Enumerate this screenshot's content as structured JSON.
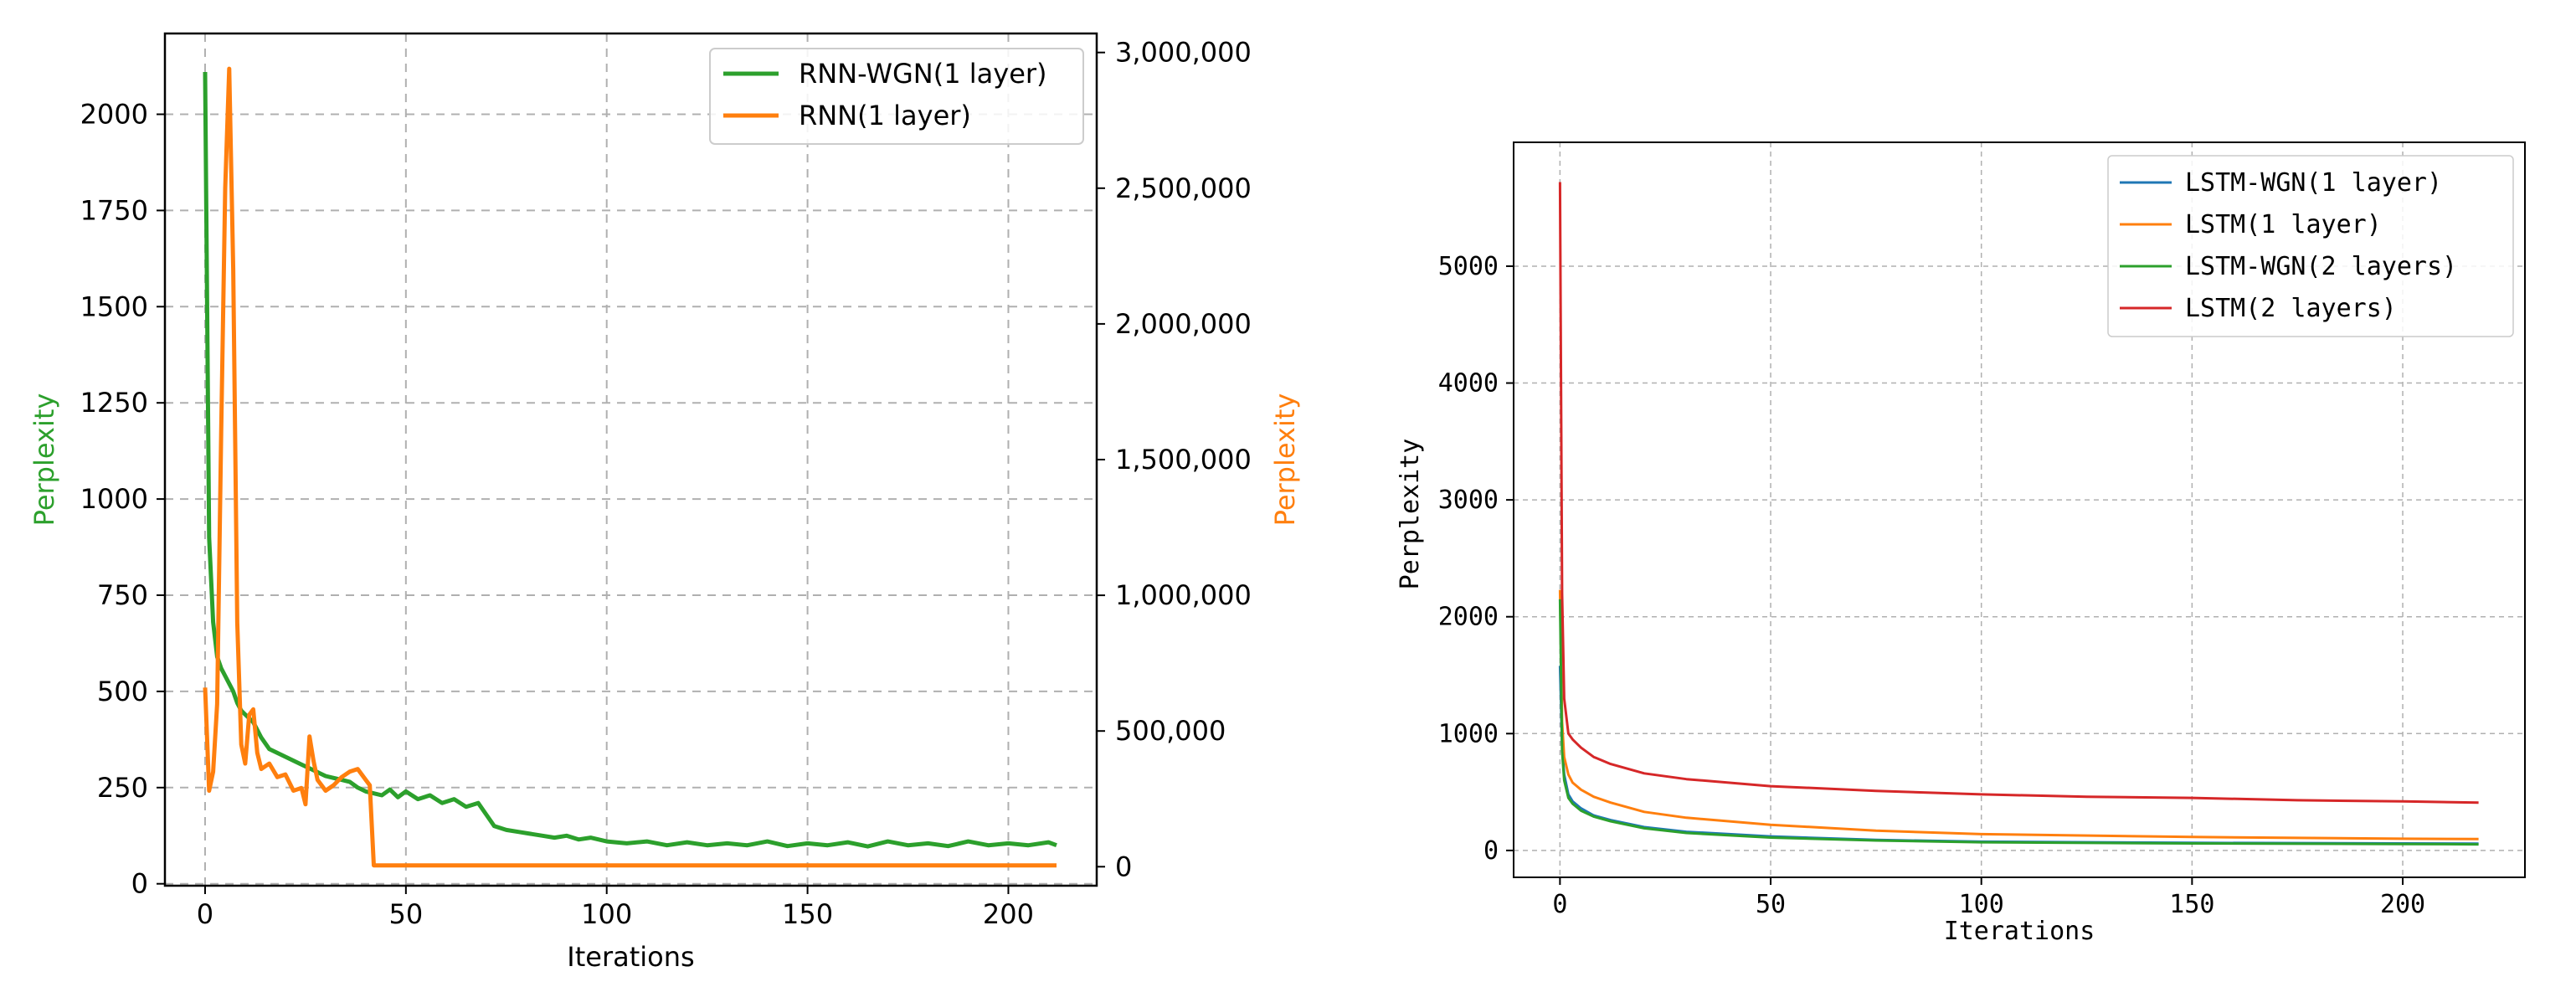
{
  "chart_data": [
    {
      "type": "line",
      "title": "",
      "xlabel": "Iterations",
      "ylabel": "Perplexity",
      "y2label": "Perplexity",
      "xlim": [
        -10,
        222
      ],
      "ylim": [
        -5,
        2210
      ],
      "y2lim": [
        -70000,
        3070000
      ],
      "x_ticks": [
        0,
        50,
        100,
        150,
        200
      ],
      "y_ticks": [
        0,
        250,
        500,
        750,
        1000,
        1250,
        1500,
        1750,
        2000
      ],
      "y2_ticks": [
        0,
        500000,
        1000000,
        1500000,
        2000000,
        2500000,
        3000000
      ],
      "x_tick_labels": [
        "0",
        "50",
        "100",
        "150",
        "200"
      ],
      "y_tick_labels": [
        "0",
        "250",
        "500",
        "750",
        "1000",
        "1250",
        "1500",
        "1750",
        "2000"
      ],
      "y2_tick_labels": [
        "0",
        "500,000",
        "1,000,000",
        "1,500,000",
        "2,000,000",
        "2,500,000",
        "3,000,000"
      ],
      "grid": true,
      "legend_position": "top-right",
      "series": [
        {
          "name": "RNN-WGN(1 layer)",
          "color": "#2ca02c",
          "axis": "left",
          "x": [
            0,
            1,
            2,
            3,
            4,
            5,
            6,
            7,
            8,
            9,
            10,
            12,
            14,
            16,
            18,
            20,
            22,
            24,
            26,
            28,
            30,
            32,
            34,
            36,
            38,
            40,
            42,
            44,
            46,
            48,
            50,
            53,
            56,
            59,
            62,
            65,
            68,
            70,
            72,
            75,
            78,
            81,
            84,
            87,
            90,
            93,
            96,
            100,
            105,
            110,
            115,
            120,
            125,
            130,
            135,
            140,
            145,
            150,
            155,
            160,
            165,
            170,
            175,
            180,
            185,
            190,
            195,
            200,
            205,
            210,
            212
          ],
          "y": [
            2110,
            900,
            680,
            590,
            560,
            540,
            520,
            500,
            470,
            450,
            440,
            420,
            380,
            350,
            340,
            330,
            320,
            310,
            300,
            290,
            280,
            275,
            270,
            265,
            250,
            240,
            235,
            230,
            245,
            225,
            240,
            220,
            230,
            210,
            220,
            200,
            210,
            180,
            150,
            140,
            135,
            130,
            125,
            120,
            125,
            115,
            120,
            110,
            105,
            110,
            100,
            108,
            100,
            105,
            100,
            110,
            98,
            105,
            100,
            108,
            97,
            110,
            100,
            105,
            98,
            110,
            100,
            105,
            100,
            108,
            100
          ]
        },
        {
          "name": "RNN(1 layer)",
          "color": "#ff7f0e",
          "axis": "right",
          "x": [
            0,
            1,
            2,
            3,
            4,
            5,
            6,
            7,
            8,
            9,
            10,
            11,
            12,
            13,
            14,
            16,
            18,
            20,
            22,
            24,
            25,
            26,
            27,
            28,
            29,
            30,
            32,
            34,
            36,
            38,
            40,
            41,
            42,
            60,
            100,
            150,
            200,
            212
          ],
          "y": [
            660000,
            280000,
            350000,
            600000,
            1600000,
            2500000,
            2940000,
            2200000,
            900000,
            450000,
            380000,
            560000,
            580000,
            420000,
            360000,
            380000,
            330000,
            340000,
            280000,
            290000,
            230000,
            480000,
            390000,
            320000,
            300000,
            280000,
            300000,
            330000,
            350000,
            360000,
            320000,
            300000,
            5000,
            5000,
            5000,
            5000,
            5000,
            5000
          ]
        }
      ]
    },
    {
      "type": "line",
      "title": "",
      "xlabel": "Iterations",
      "ylabel": "Perplexity",
      "xlim": [
        -11,
        229
      ],
      "ylim": [
        -230,
        6060
      ],
      "x_ticks": [
        0,
        50,
        100,
        150,
        200
      ],
      "y_ticks": [
        0,
        1000,
        2000,
        3000,
        4000,
        5000
      ],
      "x_tick_labels": [
        "0",
        "50",
        "100",
        "150",
        "200"
      ],
      "y_tick_labels": [
        "0",
        "1000",
        "2000",
        "3000",
        "4000",
        "5000"
      ],
      "grid": true,
      "legend_position": "top-right",
      "series": [
        {
          "name": "LSTM-WGN(1 layer)",
          "color": "#1f77b4",
          "x": [
            0,
            0.5,
            1,
            2,
            3,
            5,
            8,
            12,
            20,
            30,
            50,
            75,
            100,
            150,
            200,
            218
          ],
          "y": [
            1580,
            900,
            650,
            480,
            420,
            360,
            300,
            260,
            200,
            160,
            120,
            90,
            75,
            65,
            60,
            58
          ]
        },
        {
          "name": "LSTM(1 layer)",
          "color": "#ff7f0e",
          "x": [
            0,
            0.5,
            1,
            2,
            3,
            5,
            8,
            12,
            20,
            30,
            50,
            75,
            100,
            150,
            200,
            218
          ],
          "y": [
            2230,
            1100,
            800,
            650,
            580,
            520,
            460,
            410,
            330,
            280,
            220,
            170,
            140,
            115,
            100,
            98
          ]
        },
        {
          "name": "LSTM-WGN(2 layers)",
          "color": "#2ca02c",
          "x": [
            0,
            0.5,
            1,
            2,
            3,
            5,
            8,
            12,
            20,
            30,
            50,
            75,
            100,
            150,
            200,
            218
          ],
          "y": [
            2150,
            850,
            600,
            450,
            400,
            340,
            290,
            250,
            190,
            150,
            110,
            85,
            70,
            60,
            55,
            52
          ]
        },
        {
          "name": "LSTM(2 layers)",
          "color": "#d62728",
          "x": [
            0,
            0.5,
            1,
            2,
            3,
            5,
            8,
            12,
            20,
            30,
            50,
            75,
            100,
            125,
            150,
            175,
            200,
            218
          ],
          "y": [
            5720,
            2200,
            1300,
            1000,
            950,
            880,
            800,
            740,
            660,
            610,
            550,
            510,
            480,
            460,
            450,
            430,
            420,
            410
          ]
        }
      ]
    }
  ]
}
